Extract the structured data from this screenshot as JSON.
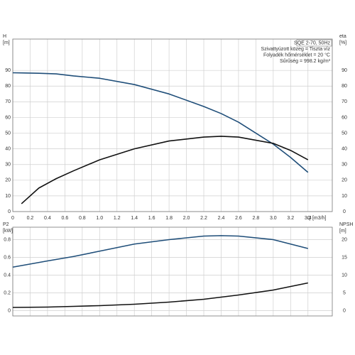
{
  "chart_data": [
    {
      "type": "line",
      "annotations": [
        "SQE 2-70, 50Hz",
        "Szivattyúzott közeg = Tiszta víz",
        "Folyadék hőmérséklet = 20 °C",
        "Sűrűség = 998.2 kg/m³"
      ],
      "ylabel": [
        "H",
        "[m]"
      ],
      "y2label": [
        "eta",
        "[%]"
      ],
      "xlabel": "Q [m3/h]",
      "x": [
        0,
        0.1,
        0.3,
        0.5,
        0.7,
        1.0,
        1.4,
        1.8,
        2.2,
        2.4,
        2.6,
        3.0,
        3.2,
        3.4
      ],
      "series": [
        {
          "color": "#1f4e79",
          "values": [
            88.5,
            88.4,
            88.2,
            87.8,
            86.5,
            85,
            81,
            75,
            67,
            62.5,
            57,
            43,
            34.5,
            25
          ]
        },
        {
          "color": "#111111",
          "axis": "y2",
          "values": [
            null,
            5,
            15,
            21,
            26,
            33,
            40,
            45,
            47.5,
            48,
            47.5,
            43.5,
            39,
            33
          ]
        }
      ],
      "xlim": [
        0,
        3.68
      ],
      "xticks": [
        0,
        0.2,
        0.4,
        0.6,
        0.8,
        {
          "value": 1,
          "label": "1.0"
        },
        1.2,
        1.4,
        1.6,
        1.8,
        {
          "value": 2,
          "label": "2.0"
        },
        2.2,
        2.4,
        2.6,
        2.8,
        {
          "value": 3,
          "label": "3.0"
        },
        3.2,
        3.4
      ],
      "ylim": [
        0,
        110
      ],
      "yticks": [
        0,
        10,
        20,
        30,
        40,
        50,
        60,
        70,
        80,
        90
      ],
      "y2lim": [
        0,
        110
      ],
      "y2ticks": [
        0,
        10,
        20,
        30,
        40,
        50,
        60,
        70,
        80,
        90
      ],
      "grid": true
    },
    {
      "type": "line",
      "ylabel": [
        "P2",
        "[kW]"
      ],
      "y2label": [
        "NPSH",
        "[m]"
      ],
      "x": [
        0,
        0.4,
        0.7,
        1.0,
        1.4,
        1.8,
        2.2,
        2.4,
        2.6,
        3.0,
        3.4
      ],
      "series": [
        {
          "color": "#1f4e79",
          "values": [
            0.49,
            0.56,
            0.61,
            0.67,
            0.75,
            0.8,
            0.84,
            0.845,
            0.84,
            0.8,
            0.7
          ]
        },
        {
          "color": "#111111",
          "axis": "y2",
          "values": [
            0.9,
            1.0,
            1.2,
            1.4,
            1.8,
            2.4,
            3.2,
            3.8,
            4.4,
            5.8,
            7.8
          ]
        }
      ],
      "xlim": [
        0,
        3.68
      ],
      "ylim": [
        -0.06,
        0.94
      ],
      "yticks": [
        0,
        0.2,
        0.4,
        0.6,
        0.8
      ],
      "y2lim": [
        -1.5,
        23.5
      ],
      "y2ticks": [
        0,
        5,
        10,
        15,
        20
      ],
      "grid": true
    }
  ]
}
